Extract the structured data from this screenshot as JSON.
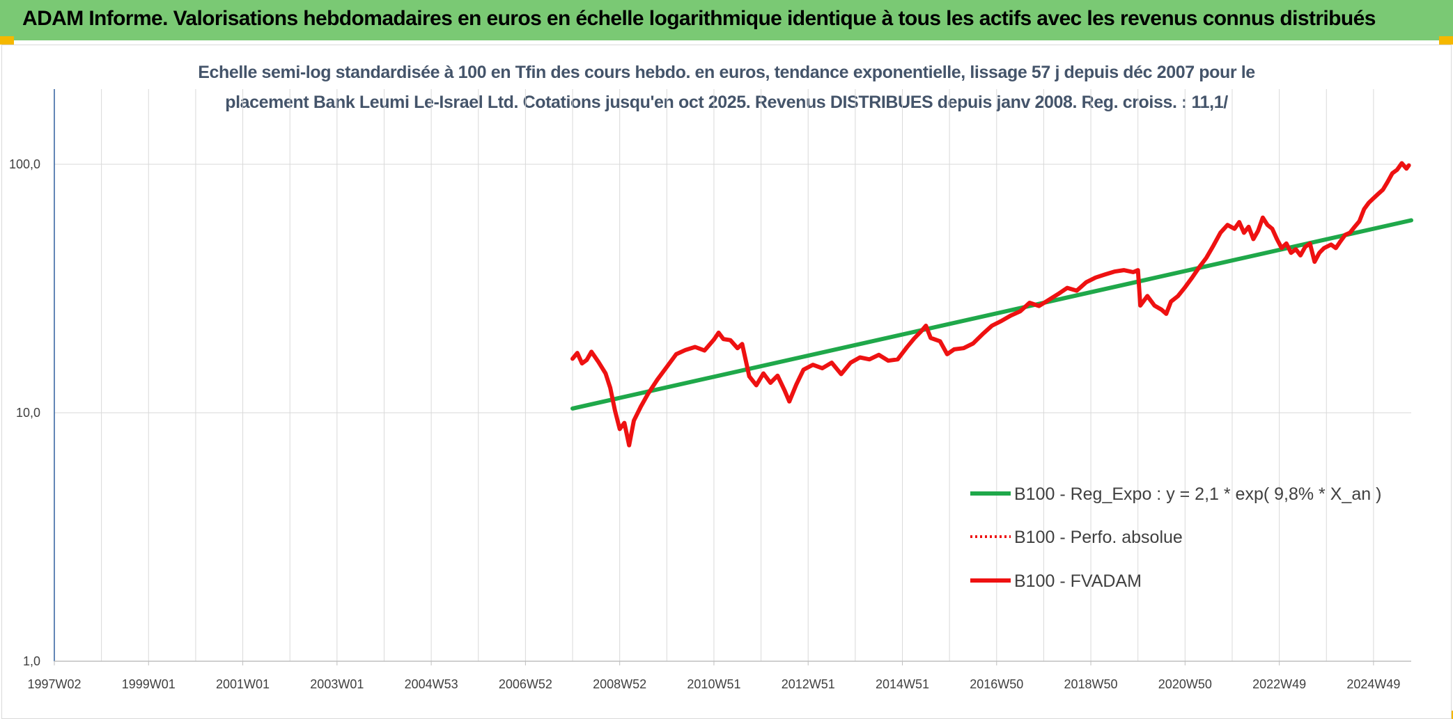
{
  "header": {
    "title": "ADAM Informe. Valorisations hebdomadaires en euros en échelle logarithmique identique à tous les actifs avec les revenus connus distribués"
  },
  "colors": {
    "header_bg": "#7ac974",
    "corner_accent": "#f5b800",
    "regression": "#1fa84a",
    "fvadam": "#ee1111",
    "perf": "#ee1111",
    "grid": "#d9d9d9",
    "axis": "#2e5e9e"
  },
  "chart_data": {
    "type": "line",
    "title_line1": "Echelle semi-log standardisée à 100 en Tfin des cours hebdo. en euros, tendance exponentielle, lissage 57 j depuis déc 2007 pour le",
    "title_line2": "placement Bank Leumi Le-Israel Ltd. Cotations jusqu'en oct 2025. Revenus DISTRIBUES depuis janv 2008. Reg. croiss. : 11,1/",
    "y_scale": "log",
    "ylim": [
      1,
      200
    ],
    "xlim": [
      1997.0,
      2025.8
    ],
    "y_ticks": [
      {
        "value": 100,
        "label": "100,0"
      },
      {
        "value": 10,
        "label": "10,0"
      },
      {
        "value": 1,
        "label": "1,0"
      }
    ],
    "x_ticks": [
      {
        "value": 1997.0,
        "label": "1997W02"
      },
      {
        "value": 1999.0,
        "label": "1999W01"
      },
      {
        "value": 2001.0,
        "label": "2001W01"
      },
      {
        "value": 2003.0,
        "label": "2003W01"
      },
      {
        "value": 2005.0,
        "label": "2004W53"
      },
      {
        "value": 2007.0,
        "label": "2006W52"
      },
      {
        "value": 2009.0,
        "label": "2008W52"
      },
      {
        "value": 2011.0,
        "label": "2010W51"
      },
      {
        "value": 2013.0,
        "label": "2012W51"
      },
      {
        "value": 2015.0,
        "label": "2014W51"
      },
      {
        "value": 2017.0,
        "label": "2016W50"
      },
      {
        "value": 2019.0,
        "label": "2018W50"
      },
      {
        "value": 2021.0,
        "label": "2020W50"
      },
      {
        "value": 2023.0,
        "label": "2022W49"
      },
      {
        "value": 2025.0,
        "label": "2024W49"
      }
    ],
    "grid": true,
    "legend_position": "right",
    "series": [
      {
        "name": "B100 - Reg_Expo : y = 2,1 * exp( 9,8% *  X_an )",
        "color": "#1fa84a",
        "style": "solid",
        "points": [
          [
            2008.0,
            10.4
          ],
          [
            2025.8,
            59.5
          ]
        ]
      },
      {
        "name": "B100 - Perfo. absolue",
        "color": "#ee1111",
        "style": "dotted",
        "points": []
      },
      {
        "name": "B100 - FVADAM",
        "color": "#ee1111",
        "style": "solid",
        "points": [
          [
            2008.0,
            16.5
          ],
          [
            2008.1,
            17.4
          ],
          [
            2008.2,
            15.8
          ],
          [
            2008.3,
            16.3
          ],
          [
            2008.4,
            17.6
          ],
          [
            2008.55,
            16.0
          ],
          [
            2008.7,
            14.4
          ],
          [
            2008.8,
            12.6
          ],
          [
            2008.9,
            10.2
          ],
          [
            2009.0,
            8.6
          ],
          [
            2009.1,
            9.1
          ],
          [
            2009.2,
            7.4
          ],
          [
            2009.3,
            9.3
          ],
          [
            2009.45,
            10.6
          ],
          [
            2009.6,
            11.9
          ],
          [
            2009.8,
            13.6
          ],
          [
            2010.0,
            15.3
          ],
          [
            2010.2,
            17.2
          ],
          [
            2010.4,
            17.9
          ],
          [
            2010.6,
            18.4
          ],
          [
            2010.8,
            17.8
          ],
          [
            2011.0,
            19.7
          ],
          [
            2011.1,
            21.0
          ],
          [
            2011.2,
            19.8
          ],
          [
            2011.35,
            19.6
          ],
          [
            2011.5,
            18.2
          ],
          [
            2011.6,
            18.9
          ],
          [
            2011.75,
            14.0
          ],
          [
            2011.9,
            12.9
          ],
          [
            2012.05,
            14.4
          ],
          [
            2012.2,
            13.2
          ],
          [
            2012.35,
            14.1
          ],
          [
            2012.5,
            12.3
          ],
          [
            2012.6,
            11.1
          ],
          [
            2012.75,
            13.0
          ],
          [
            2012.9,
            14.9
          ],
          [
            2013.1,
            15.6
          ],
          [
            2013.3,
            15.1
          ],
          [
            2013.5,
            15.9
          ],
          [
            2013.7,
            14.3
          ],
          [
            2013.9,
            15.9
          ],
          [
            2014.1,
            16.7
          ],
          [
            2014.3,
            16.4
          ],
          [
            2014.5,
            17.1
          ],
          [
            2014.7,
            16.2
          ],
          [
            2014.9,
            16.4
          ],
          [
            2015.1,
            18.4
          ],
          [
            2015.25,
            19.9
          ],
          [
            2015.4,
            21.3
          ],
          [
            2015.5,
            22.4
          ],
          [
            2015.6,
            20.0
          ],
          [
            2015.8,
            19.4
          ],
          [
            2015.95,
            17.2
          ],
          [
            2016.1,
            18.0
          ],
          [
            2016.3,
            18.2
          ],
          [
            2016.5,
            19.0
          ],
          [
            2016.7,
            20.7
          ],
          [
            2016.9,
            22.4
          ],
          [
            2017.1,
            23.4
          ],
          [
            2017.3,
            24.6
          ],
          [
            2017.5,
            25.6
          ],
          [
            2017.7,
            27.7
          ],
          [
            2017.9,
            26.9
          ],
          [
            2018.1,
            28.4
          ],
          [
            2018.3,
            30.0
          ],
          [
            2018.5,
            31.8
          ],
          [
            2018.7,
            31.0
          ],
          [
            2018.9,
            33.5
          ],
          [
            2019.1,
            35.0
          ],
          [
            2019.3,
            36.0
          ],
          [
            2019.5,
            37.0
          ],
          [
            2019.7,
            37.5
          ],
          [
            2019.9,
            36.8
          ],
          [
            2020.0,
            37.5
          ],
          [
            2020.05,
            27.0
          ],
          [
            2020.2,
            29.5
          ],
          [
            2020.35,
            27.0
          ],
          [
            2020.5,
            26.0
          ],
          [
            2020.6,
            25.0
          ],
          [
            2020.7,
            28.0
          ],
          [
            2020.85,
            29.5
          ],
          [
            2021.0,
            32.0
          ],
          [
            2021.15,
            35.0
          ],
          [
            2021.3,
            38.5
          ],
          [
            2021.45,
            42.0
          ],
          [
            2021.6,
            47.0
          ],
          [
            2021.75,
            53.0
          ],
          [
            2021.9,
            57.0
          ],
          [
            2022.05,
            55.0
          ],
          [
            2022.15,
            58.5
          ],
          [
            2022.25,
            53.0
          ],
          [
            2022.35,
            56.0
          ],
          [
            2022.45,
            50.0
          ],
          [
            2022.55,
            54.0
          ],
          [
            2022.65,
            61.0
          ],
          [
            2022.75,
            57.0
          ],
          [
            2022.85,
            55.0
          ],
          [
            2022.95,
            50.0
          ],
          [
            2023.05,
            46.0
          ],
          [
            2023.15,
            48.0
          ],
          [
            2023.25,
            44.0
          ],
          [
            2023.35,
            45.5
          ],
          [
            2023.45,
            43.0
          ],
          [
            2023.55,
            46.5
          ],
          [
            2023.65,
            48.0
          ],
          [
            2023.75,
            40.5
          ],
          [
            2023.85,
            44.0
          ],
          [
            2023.95,
            46.0
          ],
          [
            2024.1,
            47.5
          ],
          [
            2024.2,
            46.0
          ],
          [
            2024.3,
            49.0
          ],
          [
            2024.4,
            52.0
          ],
          [
            2024.5,
            53.0
          ],
          [
            2024.6,
            56.0
          ],
          [
            2024.7,
            59.0
          ],
          [
            2024.8,
            66.0
          ],
          [
            2024.9,
            70.0
          ],
          [
            2025.0,
            73.0
          ],
          [
            2025.1,
            76.0
          ],
          [
            2025.2,
            79.0
          ],
          [
            2025.3,
            85.0
          ],
          [
            2025.4,
            92.0
          ],
          [
            2025.5,
            95.0
          ],
          [
            2025.6,
            101.0
          ],
          [
            2025.7,
            96.0
          ],
          [
            2025.75,
            99.0
          ]
        ]
      }
    ]
  }
}
